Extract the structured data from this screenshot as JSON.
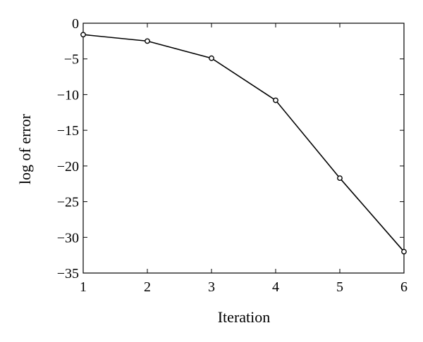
{
  "chart_data": {
    "type": "line",
    "title": "",
    "xlabel": "Iteration",
    "ylabel": "log of error",
    "xlim": [
      1,
      6
    ],
    "ylim": [
      -35,
      0
    ],
    "xticks": [
      1,
      2,
      3,
      4,
      5,
      6
    ],
    "yticks": [
      0,
      -5,
      -10,
      -15,
      -20,
      -25,
      -30,
      -35
    ],
    "ytick_labels": [
      "0",
      "−5",
      "−10",
      "−15",
      "−20",
      "−25",
      "−30",
      "−35"
    ],
    "grid": false,
    "legend": "none",
    "series": [
      {
        "marker": "circle",
        "color": "#000000",
        "x": [
          1,
          2,
          3,
          4,
          5,
          6
        ],
        "y": [
          -1.6,
          -2.5,
          -4.9,
          -10.8,
          -21.7,
          -32.0
        ]
      }
    ]
  }
}
